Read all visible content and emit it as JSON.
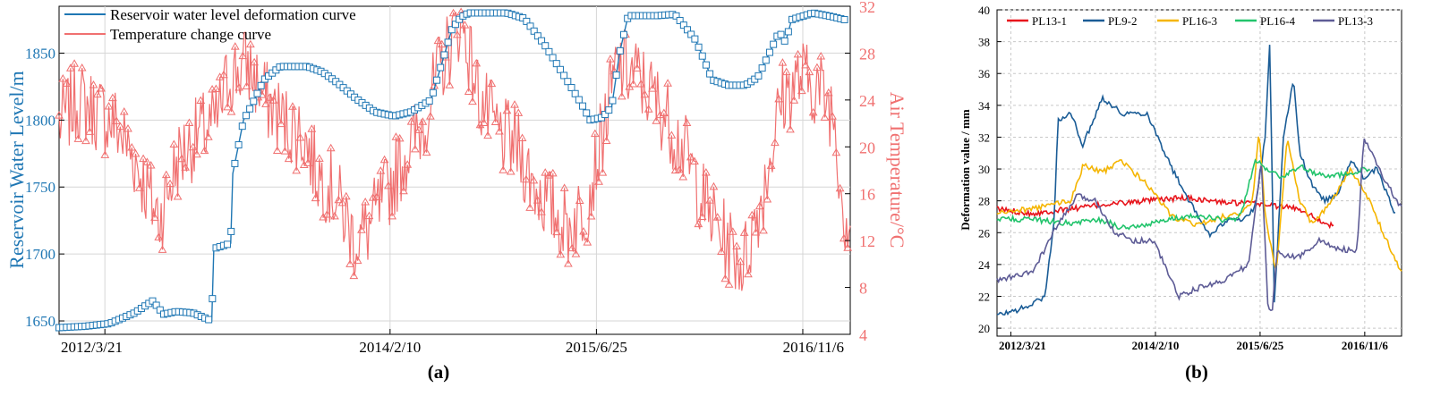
{
  "chart_data": [
    {
      "type": "line",
      "panel_label": "(a)",
      "x_ticks": [
        "2012/3/21",
        "2014/2/10",
        "2015/6/25",
        "2016/11/6"
      ],
      "x_range": [
        "2011-12-01",
        "2017-03-01"
      ],
      "y_left": {
        "label": "Reservoir Water Level/m",
        "ticks": [
          1650,
          1700,
          1750,
          1800,
          1850
        ],
        "range": [
          1640,
          1885
        ],
        "color": "#1f77b4"
      },
      "y_right": {
        "label": "Air Temperature/°C",
        "ticks": [
          4,
          8,
          12,
          16,
          20,
          24,
          28,
          32
        ],
        "range": [
          4,
          32
        ],
        "color": "#f07070"
      },
      "grid": true,
      "legend_position": "top-left",
      "series": [
        {
          "name": "Reservoir water level deformation curve",
          "axis": "left",
          "marker": "square",
          "color": "#1f77b4",
          "x": [
            "2011-12-01",
            "2012-02-01",
            "2012-04-01",
            "2012-06-01",
            "2012-07-15",
            "2012-08-10",
            "2012-09-10",
            "2012-10-20",
            "2012-11-20",
            "2012-12-05",
            "2012-12-10",
            "2013-01-20",
            "2013-01-25",
            "2013-02-20",
            "2013-03-10",
            "2013-04-10",
            "2013-05-20",
            "2013-06-20",
            "2013-07-25",
            "2013-08-30",
            "2013-10-05",
            "2013-11-20",
            "2014-01-05",
            "2014-02-20",
            "2014-04-01",
            "2014-05-20",
            "2014-07-10",
            "2014-08-01",
            "2014-08-20",
            "2014-09-10",
            "2014-10-10",
            "2014-11-20",
            "2015-01-01",
            "2015-02-20",
            "2015-04-10",
            "2015-05-20",
            "2015-06-10",
            "2015-07-10",
            "2015-08-01",
            "2015-08-20",
            "2015-09-10",
            "2015-10-10",
            "2015-11-20",
            "2016-01-01",
            "2016-02-20",
            "2016-04-01",
            "2016-05-10",
            "2016-06-20",
            "2016-07-20",
            "2016-08-20",
            "2016-09-10",
            "2016-09-25",
            "2016-10-10",
            "2016-12-01",
            "2017-01-20",
            "2017-02-15"
          ],
          "values": [
            1645,
            1646,
            1648,
            1656,
            1665,
            1655,
            1657,
            1656,
            1652,
            1650,
            1704,
            1708,
            1760,
            1800,
            1810,
            1830,
            1840,
            1840,
            1840,
            1836,
            1828,
            1816,
            1806,
            1803,
            1806,
            1815,
            1868,
            1877,
            1880,
            1880,
            1880,
            1880,
            1876,
            1856,
            1832,
            1812,
            1800,
            1802,
            1810,
            1850,
            1878,
            1878,
            1878,
            1879,
            1860,
            1830,
            1826,
            1826,
            1832,
            1852,
            1866,
            1858,
            1875,
            1880,
            1877,
            1875
          ]
        },
        {
          "name": "Temperature change curve",
          "axis": "right",
          "marker": "triangle",
          "color": "#f07070",
          "x": [
            "2011-12-01",
            "2012-01-15",
            "2012-03-01",
            "2012-04-15",
            "2012-06-01",
            "2012-07-15",
            "2012-08-01",
            "2012-09-15",
            "2012-11-01",
            "2012-12-15",
            "2013-01-15",
            "2013-03-01",
            "2013-04-15",
            "2013-06-01",
            "2013-07-15",
            "2013-08-15",
            "2013-10-01",
            "2013-11-15",
            "2013-12-20",
            "2014-02-01",
            "2014-03-15",
            "2014-05-01",
            "2014-06-15",
            "2014-08-01",
            "2014-09-15",
            "2014-11-01",
            "2014-12-15",
            "2015-01-20",
            "2015-03-01",
            "2015-04-15",
            "2015-06-01",
            "2015-07-15",
            "2015-08-15",
            "2015-10-01",
            "2015-11-15",
            "2015-12-20",
            "2016-02-01",
            "2016-03-15",
            "2016-05-01",
            "2016-06-15",
            "2016-08-01",
            "2016-09-15",
            "2016-11-01",
            "2016-12-15",
            "2017-01-20",
            "2017-02-15"
          ],
          "values": [
            22,
            24,
            23,
            22,
            19,
            15,
            14,
            19,
            21,
            22,
            26,
            27,
            24,
            22,
            21,
            18,
            16,
            12,
            13,
            16,
            19,
            22,
            27,
            31,
            24,
            21,
            20,
            17,
            15,
            13,
            15,
            22,
            27,
            26,
            24,
            22,
            19,
            15,
            12,
            10,
            16,
            24,
            26,
            25,
            23,
            14
          ]
        }
      ]
    },
    {
      "type": "line",
      "panel_label": "(b)",
      "x_ticks": [
        "2012/3/21",
        "2014/2/10",
        "2015/6/25",
        "2016/11/6"
      ],
      "x_range": [
        "2012-01-15",
        "2017-05-01"
      ],
      "ylabel": "Deformation value / mm",
      "y_ticks": [
        20,
        22,
        24,
        26,
        28,
        30,
        32,
        34,
        36,
        38,
        40
      ],
      "ylim": [
        19.5,
        40
      ],
      "grid": true,
      "legend_position": "top",
      "series": [
        {
          "name": "PL13-1",
          "color": "#e8141b",
          "x": [
            "2012-01-15",
            "2012-07-01",
            "2013-01-01",
            "2013-07-01",
            "2014-01-01",
            "2014-07-01",
            "2015-01-01",
            "2015-07-01",
            "2016-01-01",
            "2016-04-01",
            "2016-06-10"
          ],
          "values": [
            27.5,
            27.2,
            27.5,
            27.8,
            28.0,
            28.2,
            27.9,
            27.8,
            27.5,
            26.8,
            26.4
          ]
        },
        {
          "name": "PL9-2",
          "color": "#1a5c96",
          "x": [
            "2012-01-15",
            "2012-06-01",
            "2012-09-01",
            "2012-10-15",
            "2012-11-01",
            "2013-01-01",
            "2013-03-01",
            "2013-06-01",
            "2013-09-01",
            "2014-01-01",
            "2014-05-01",
            "2014-09-01",
            "2014-11-01",
            "2015-02-01",
            "2015-04-01",
            "2015-06-01",
            "2015-07-20",
            "2015-08-10",
            "2015-09-01",
            "2015-10-15",
            "2015-12-01",
            "2016-01-01",
            "2016-03-01",
            "2016-05-01",
            "2016-07-01",
            "2016-09-01",
            "2016-11-01",
            "2017-01-01",
            "2017-04-01"
          ],
          "values": [
            20.8,
            21.3,
            22,
            27,
            33,
            33.5,
            31.5,
            34.5,
            33.5,
            33.5,
            30,
            27,
            25.8,
            27,
            26.8,
            27.5,
            32,
            37.8,
            21.5,
            32,
            35.6,
            31,
            29,
            28,
            28.5,
            30.5,
            29.5,
            30,
            27.2
          ]
        },
        {
          "name": "PL16-3",
          "color": "#f5b500",
          "x": [
            "2012-01-15",
            "2012-07-01",
            "2013-01-01",
            "2013-03-01",
            "2013-06-01",
            "2013-09-01",
            "2014-01-01",
            "2014-05-01",
            "2014-09-01",
            "2015-01-01",
            "2015-04-01",
            "2015-05-20",
            "2015-06-20",
            "2015-07-20",
            "2015-09-10",
            "2015-11-01",
            "2016-01-01",
            "2016-03-01",
            "2016-06-01",
            "2016-09-01",
            "2016-12-01",
            "2017-02-01",
            "2017-05-01"
          ],
          "values": [
            27.2,
            27.5,
            28,
            30.2,
            29.8,
            30.5,
            29,
            27,
            26.5,
            27,
            27.2,
            28,
            32.5,
            27,
            23.5,
            32,
            28,
            26.5,
            28,
            30,
            28,
            26,
            23.5
          ]
        },
        {
          "name": "PL16-4",
          "color": "#22c46c",
          "x": [
            "2012-01-15",
            "2012-07-01",
            "2013-01-01",
            "2013-06-01",
            "2013-09-01",
            "2014-01-01",
            "2014-06-01",
            "2014-10-01",
            "2015-01-01",
            "2015-03-01",
            "2015-04-01",
            "2015-06-01",
            "2015-08-01",
            "2015-10-01",
            "2016-01-01",
            "2016-03-01",
            "2016-06-01",
            "2016-09-01",
            "2016-12-01"
          ],
          "values": [
            26.9,
            26.8,
            26.6,
            26.8,
            26.3,
            26.5,
            27,
            27,
            26.8,
            26.9,
            27.4,
            30.5,
            30,
            29.5,
            30.2,
            29.8,
            29.5,
            29.8,
            30
          ]
        },
        {
          "name": "PL13-3",
          "color": "#5e5c96",
          "x": [
            "2012-01-15",
            "2012-07-01",
            "2012-11-01",
            "2013-02-01",
            "2013-05-01",
            "2013-08-01",
            "2013-11-01",
            "2014-02-01",
            "2014-06-01",
            "2014-09-01",
            "2015-01-01",
            "2015-05-01",
            "2015-07-01",
            "2015-08-01",
            "2015-08-20",
            "2015-09-15",
            "2015-11-01",
            "2016-01-01",
            "2016-04-01",
            "2016-07-01",
            "2016-10-01",
            "2016-11-01",
            "2017-02-01",
            "2017-05-01"
          ],
          "values": [
            23,
            23.5,
            26.5,
            28.3,
            28,
            26,
            25.5,
            25.5,
            22,
            22.5,
            23,
            24,
            30.5,
            21.5,
            20.8,
            25,
            24.5,
            24.5,
            25.5,
            25,
            24.8,
            32,
            29.5,
            27.5
          ]
        }
      ]
    }
  ]
}
